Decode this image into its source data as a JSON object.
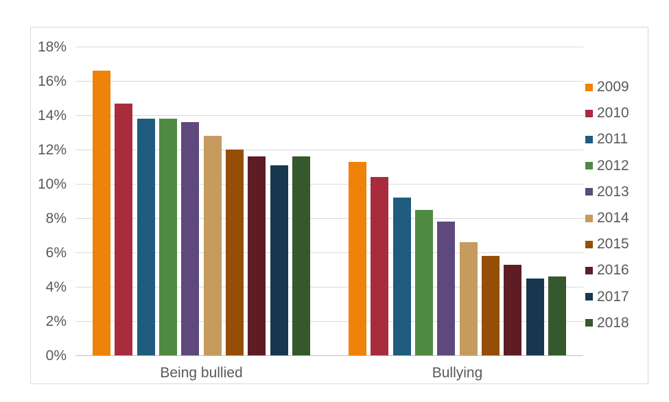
{
  "chart": {
    "background": "#ffffff",
    "border_color": "#d9d9d9",
    "gridline_color": "#d9d9d9",
    "axis_line_color": "#bfbfbf",
    "text_color": "#595959"
  },
  "chart_data": {
    "type": "bar",
    "title": "",
    "xlabel": "",
    "ylabel": "",
    "categories": [
      "Being bullied",
      "Bullying"
    ],
    "y_ticks": [
      "0%",
      "2%",
      "4%",
      "6%",
      "8%",
      "10%",
      "12%",
      "14%",
      "16%",
      "18%"
    ],
    "y_tick_values": [
      0,
      2,
      4,
      6,
      8,
      10,
      12,
      14,
      16,
      18
    ],
    "ylim": [
      0,
      19
    ],
    "grid": "horizontal",
    "legend_position": "right",
    "unit": "%",
    "series": [
      {
        "name": "2009",
        "color": "#ef8209",
        "values": [
          16.6,
          11.3
        ]
      },
      {
        "name": "2010",
        "color": "#a82c3e",
        "values": [
          14.7,
          10.4
        ]
      },
      {
        "name": "2011",
        "color": "#1f5c7e",
        "values": [
          13.8,
          9.2
        ]
      },
      {
        "name": "2012",
        "color": "#4f8a43",
        "values": [
          13.8,
          8.5
        ]
      },
      {
        "name": "2013",
        "color": "#5d497c",
        "values": [
          13.6,
          7.8
        ]
      },
      {
        "name": "2014",
        "color": "#c59b5f",
        "values": [
          12.8,
          6.6
        ]
      },
      {
        "name": "2015",
        "color": "#954f05",
        "values": [
          12.0,
          5.8
        ]
      },
      {
        "name": "2016",
        "color": "#5e1c25",
        "values": [
          11.6,
          5.3
        ]
      },
      {
        "name": "2017",
        "color": "#173850",
        "values": [
          11.1,
          4.5
        ]
      },
      {
        "name": "2018",
        "color": "#35582c",
        "values": [
          11.6,
          4.6
        ]
      }
    ]
  }
}
